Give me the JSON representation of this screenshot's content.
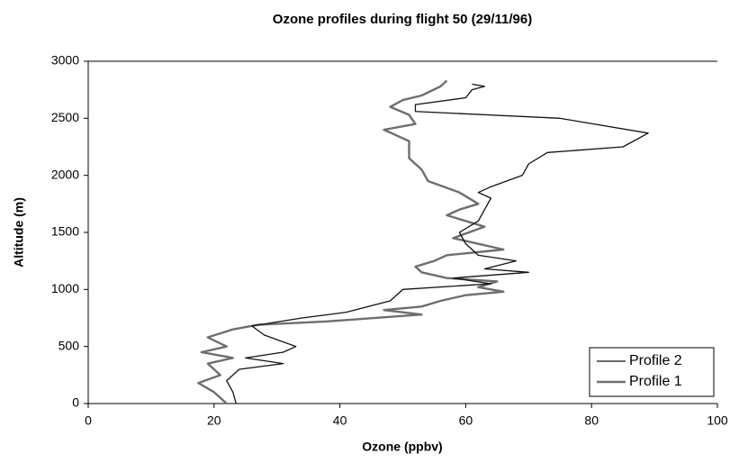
{
  "chart_data": {
    "type": "line",
    "title": "Ozone profiles during flight 50 (29/11/96)",
    "x_label": "Ozone (ppbv)",
    "y_label": "Altitude (m)",
    "xlim": [
      0,
      100
    ],
    "xticks": [
      0,
      20,
      40,
      60,
      80,
      100
    ],
    "ylim": [
      0,
      3000
    ],
    "yticks": [
      0,
      500,
      1000,
      1500,
      2000,
      2500,
      3000
    ],
    "legend": "lower right",
    "series": [
      {
        "name": "Profile 2",
        "color": "#111111",
        "width": 1.3,
        "x": [
          23.5,
          23,
          22,
          24,
          31,
          25,
          31,
          33,
          28,
          26,
          34,
          41,
          48,
          50,
          64,
          58,
          70,
          63,
          68,
          62,
          60,
          59,
          62,
          63,
          64,
          62,
          64,
          69,
          70,
          73,
          85,
          89,
          75,
          52,
          52,
          60,
          61,
          63,
          61
        ],
        "values": [
          0,
          100,
          200,
          300,
          350,
          400,
          450,
          500,
          600,
          680,
          750,
          800,
          900,
          1000,
          1050,
          1100,
          1150,
          1180,
          1250,
          1300,
          1400,
          1500,
          1600,
          1700,
          1800,
          1850,
          1900,
          2000,
          2100,
          2200,
          2250,
          2370,
          2500,
          2560,
          2620,
          2680,
          2750,
          2780,
          2800
        ]
      },
      {
        "name": "Profile 1",
        "color": "#6e6e6e",
        "width": 2.4,
        "x": [
          22,
          20,
          17.5,
          21,
          19,
          23,
          18,
          22,
          19,
          23,
          27,
          38,
          53,
          47,
          53,
          56,
          60,
          66,
          62,
          65,
          57,
          53,
          52,
          55,
          57,
          66,
          58,
          63,
          57,
          59,
          62,
          59,
          54,
          53,
          51,
          51,
          47,
          52,
          51,
          48,
          50,
          53,
          56,
          57
        ],
        "values": [
          0,
          100,
          180,
          250,
          350,
          400,
          450,
          500,
          580,
          650,
          690,
          720,
          780,
          820,
          850,
          900,
          950,
          980,
          1020,
          1070,
          1100,
          1150,
          1200,
          1250,
          1300,
          1350,
          1450,
          1550,
          1650,
          1700,
          1750,
          1850,
          1950,
          2050,
          2150,
          2300,
          2400,
          2450,
          2530,
          2600,
          2660,
          2700,
          2780,
          2830
        ]
      }
    ]
  }
}
